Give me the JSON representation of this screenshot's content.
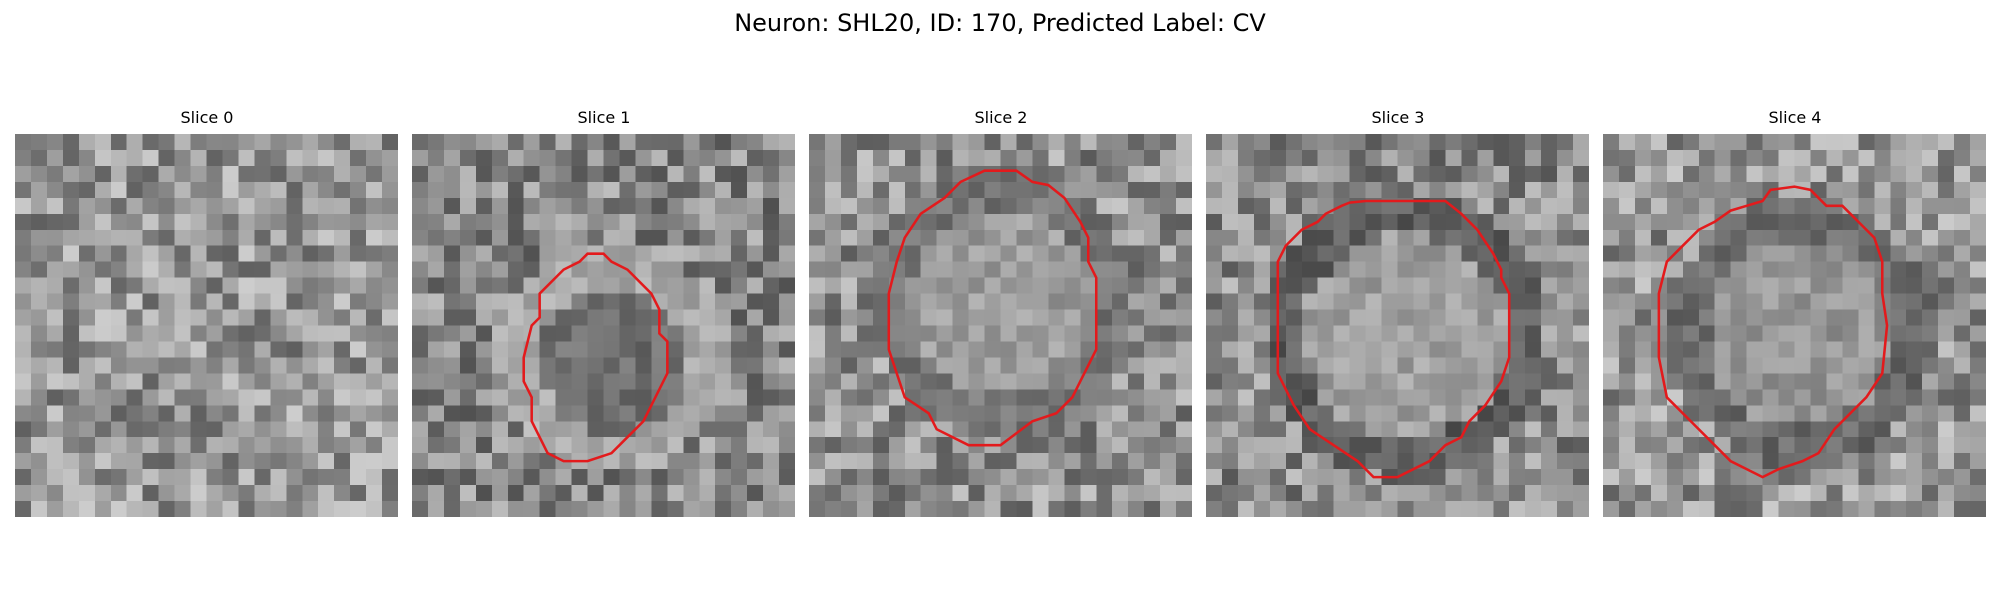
{
  "figure": {
    "title": "Neuron: SHL20, ID: 170, Predicted Label: CV"
  },
  "panels": [
    {
      "title": "Slice 0",
      "has_outline": false
    },
    {
      "title": "Slice 1",
      "has_outline": true
    },
    {
      "title": "Slice 2",
      "has_outline": true
    },
    {
      "title": "Slice 3",
      "has_outline": true
    },
    {
      "title": "Slice 4",
      "has_outline": true
    }
  ],
  "colors": {
    "outline": "#e31a1c"
  }
}
